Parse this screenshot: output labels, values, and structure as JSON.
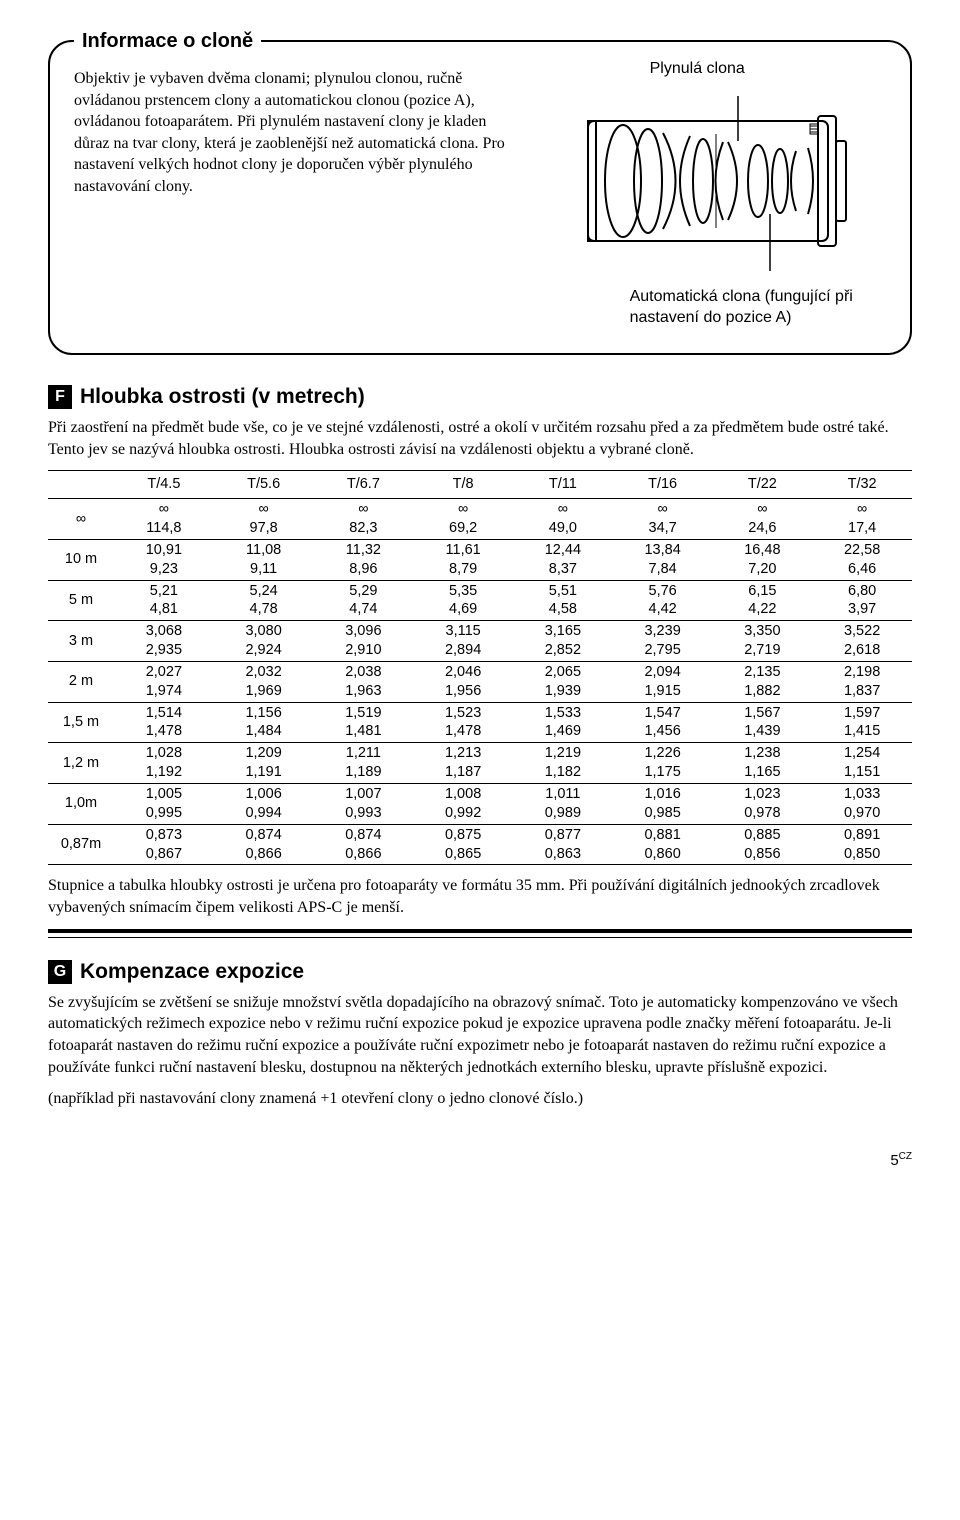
{
  "box": {
    "title": "Informace o cloně",
    "text": "Objektiv je vybaven dvěma clonami; plynulou clonou, ručně ovládanou prstencem clony a automatickou clonou (pozice A), ovládanou fotoaparátem. Při plynulém nastavení clony je kladen důraz na tvar clony, která je zaoblenější než automatická clona. Pro nastavení velkých hodnot clony je doporučen výběr plynulého nastavování clony.",
    "label_top": "Plynulá clona",
    "label_bottom": "Automatická clona (fungující při nastavení do pozice A)"
  },
  "sectionF": {
    "letter": "F",
    "title": "Hloubka ostrosti (v metrech)",
    "body": "Při zaostření na předmět bude vše, co je ve stejné vzdálenosti, ostré a okolí v určitém rozsahu před a za předmětem bude ostré také. Tento jev se nazývá hloubka ostrosti. Hloubka ostrosti závisí na vzdálenosti objektu a vybrané cloně.",
    "afterTable": "Stupnice a tabulka hloubky ostrosti je určena pro fotoaparáty ve formátu 35 mm. Při používání digitálních jednookých zrcadlovek vybavených snímacím čipem velikosti APS-C je menší."
  },
  "table": {
    "headers": [
      "",
      "T/4.5",
      "T/5.6",
      "T/6.7",
      "T/8",
      "T/11",
      "T/16",
      "T/22",
      "T/32"
    ],
    "rows": [
      {
        "label": "∞",
        "cells": [
          [
            "∞",
            "114,8"
          ],
          [
            "∞",
            "97,8"
          ],
          [
            "∞",
            "82,3"
          ],
          [
            "∞",
            "69,2"
          ],
          [
            "∞",
            "49,0"
          ],
          [
            "∞",
            "34,7"
          ],
          [
            "∞",
            "24,6"
          ],
          [
            "∞",
            "17,4"
          ]
        ]
      },
      {
        "label": "10 m",
        "cells": [
          [
            "10,91",
            "9,23"
          ],
          [
            "11,08",
            "9,11"
          ],
          [
            "11,32",
            "8,96"
          ],
          [
            "11,61",
            "8,79"
          ],
          [
            "12,44",
            "8,37"
          ],
          [
            "13,84",
            "7,84"
          ],
          [
            "16,48",
            "7,20"
          ],
          [
            "22,58",
            "6,46"
          ]
        ]
      },
      {
        "label": "5 m",
        "cells": [
          [
            "5,21",
            "4,81"
          ],
          [
            "5,24",
            "4,78"
          ],
          [
            "5,29",
            "4,74"
          ],
          [
            "5,35",
            "4,69"
          ],
          [
            "5,51",
            "4,58"
          ],
          [
            "5,76",
            "4,42"
          ],
          [
            "6,15",
            "4,22"
          ],
          [
            "6,80",
            "3,97"
          ]
        ]
      },
      {
        "label": "3 m",
        "cells": [
          [
            "3,068",
            "2,935"
          ],
          [
            "3,080",
            "2,924"
          ],
          [
            "3,096",
            "2,910"
          ],
          [
            "3,115",
            "2,894"
          ],
          [
            "3,165",
            "2,852"
          ],
          [
            "3,239",
            "2,795"
          ],
          [
            "3,350",
            "2,719"
          ],
          [
            "3,522",
            "2,618"
          ]
        ]
      },
      {
        "label": "2 m",
        "cells": [
          [
            "2,027",
            "1,974"
          ],
          [
            "2,032",
            "1,969"
          ],
          [
            "2,038",
            "1,963"
          ],
          [
            "2,046",
            "1,956"
          ],
          [
            "2,065",
            "1,939"
          ],
          [
            "2,094",
            "1,915"
          ],
          [
            "2,135",
            "1,882"
          ],
          [
            "2,198",
            "1,837"
          ]
        ]
      },
      {
        "label": "1,5 m",
        "cells": [
          [
            "1,514",
            "1,478"
          ],
          [
            "1,156",
            "1,484"
          ],
          [
            "1,519",
            "1,481"
          ],
          [
            "1,523",
            "1,478"
          ],
          [
            "1,533",
            "1,469"
          ],
          [
            "1,547",
            "1,456"
          ],
          [
            "1,567",
            "1,439"
          ],
          [
            "1,597",
            "1,415"
          ]
        ]
      },
      {
        "label": "1,2 m",
        "cells": [
          [
            "1,028",
            "1,192"
          ],
          [
            "1,209",
            "1,191"
          ],
          [
            "1,211",
            "1,189"
          ],
          [
            "1,213",
            "1,187"
          ],
          [
            "1,219",
            "1,182"
          ],
          [
            "1,226",
            "1,175"
          ],
          [
            "1,238",
            "1,165"
          ],
          [
            "1,254",
            "1,151"
          ]
        ]
      },
      {
        "label": "1,0m",
        "cells": [
          [
            "1,005",
            "0,995"
          ],
          [
            "1,006",
            "0,994"
          ],
          [
            "1,007",
            "0,993"
          ],
          [
            "1,008",
            "0,992"
          ],
          [
            "1,011",
            "0,989"
          ],
          [
            "1,016",
            "0,985"
          ],
          [
            "1,023",
            "0,978"
          ],
          [
            "1,033",
            "0,970"
          ]
        ]
      },
      {
        "label": "0,87m",
        "cells": [
          [
            "0,873",
            "0,867"
          ],
          [
            "0,874",
            "0,866"
          ],
          [
            "0,874",
            "0,866"
          ],
          [
            "0,875",
            "0,865"
          ],
          [
            "0,877",
            "0,863"
          ],
          [
            "0,881",
            "0,860"
          ],
          [
            "0,885",
            "0,856"
          ],
          [
            "0,891",
            "0,850"
          ]
        ]
      }
    ]
  },
  "sectionG": {
    "letter": "G",
    "title": "Kompenzace expozice",
    "body1": "Se zvyšujícím se zvětšení se snižuje množství světla dopadajícího na obrazový snímač. Toto je automaticky kompenzováno ve všech automatických režimech expozice nebo v režimu ruční expozice pokud je expozice upravena podle značky měření fotoaparátu. Je-li fotoaparát nastaven do režimu ruční expozice a používáte ruční expozimetr nebo je fotoaparát nastaven do režimu ruční expozice a používáte funkci ruční nastavení blesku, dostupnou na některých jednotkách externího blesku, upravte příslušně expozici.",
    "body2": "(například při nastavování clony znamená +1 otevření clony o jedno clonové číslo.)"
  },
  "footer": {
    "page": "5",
    "suffix": "CZ"
  }
}
